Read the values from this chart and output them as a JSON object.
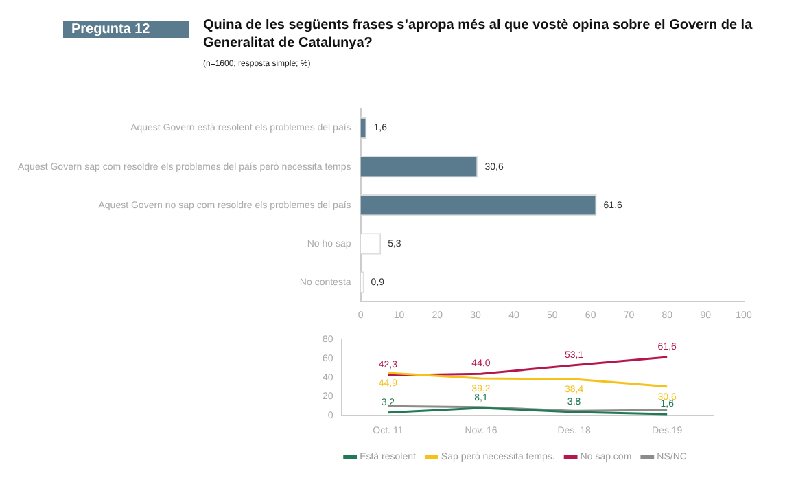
{
  "chart_data": [
    {
      "type": "bar",
      "orientation": "horizontal",
      "title": "Quina de les següents frases s’apropa més al que vostè opina sobre el Govern de la Generalitat de Catalunya?",
      "subtitle": "(n=1600; resposta simple; %)",
      "annotations": [
        "Pregunta 12"
      ],
      "categories": [
        "Aquest Govern està resolent els problemes del país",
        "Aquest Govern sap com resoldre els problemes del país però necessita temps",
        "Aquest Govern no sap com resoldre els problemes del país",
        "No ho sap",
        "No contesta"
      ],
      "values": [
        1.6,
        30.6,
        61.6,
        5.3,
        0.9
      ],
      "colors": [
        "#5a7b8e",
        "#5a7b8e",
        "#5a7b8e",
        "#ffffff",
        "#ffffff"
      ],
      "value_labels": [
        "1,6",
        "30,6",
        "61,6",
        "5,3",
        "0,9"
      ],
      "xlim": [
        0,
        100
      ],
      "xticks": [
        0,
        10,
        20,
        30,
        40,
        50,
        60,
        70,
        80,
        90,
        100
      ],
      "grid": false,
      "legend": false
    },
    {
      "type": "line",
      "categories": [
        "Oct. 11",
        "Nov. 16",
        "Des. 18",
        "Des.19"
      ],
      "series": [
        {
          "name": "Està resolent",
          "color": "#1f7a55",
          "values": [
            3.2,
            8.1,
            3.8,
            1.6
          ],
          "value_labels": [
            "3,2",
            "8,1",
            "3,8",
            "1,6"
          ]
        },
        {
          "name": "Sap però necessita temps.",
          "color": "#f5c21b",
          "values": [
            44.9,
            39.2,
            38.4,
            30.6
          ],
          "value_labels": [
            "44,9",
            "39,2",
            "38,4",
            "30,6"
          ]
        },
        {
          "name": "No sap com",
          "color": "#b5174b",
          "values": [
            42.3,
            44.0,
            53.1,
            61.6
          ],
          "value_labels": [
            "42,3",
            "44,0",
            "53,1",
            "61,6"
          ]
        },
        {
          "name": "NS/NC",
          "color": "#8c8c8c",
          "values": [
            10,
            9,
            5,
            6
          ]
        }
      ],
      "ylim": [
        0,
        80
      ],
      "yticks": [
        0,
        20,
        40,
        60,
        80
      ],
      "grid": false,
      "legend": "bottom",
      "marker": "none",
      "line_style": "solid"
    }
  ]
}
